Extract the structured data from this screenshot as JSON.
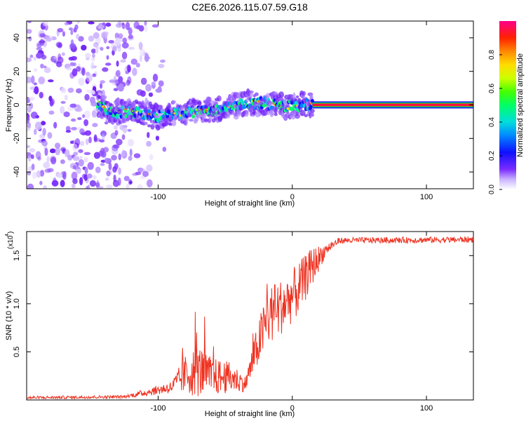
{
  "title": "C2E6.2026.115.07.59.G18",
  "chart_data": [
    {
      "type": "heatmap",
      "xlabel": "Height of straight line (km)",
      "ylabel": "Frequency (Hz)",
      "xlim": [
        -198,
        135
      ],
      "ylim": [
        -50,
        50
      ],
      "xticks": [
        -100,
        0,
        100
      ],
      "yticks": [
        -40,
        -20,
        0,
        20,
        40
      ],
      "colorbar": {
        "label": "Normalized spectral amplitude",
        "range": [
          0,
          1
        ],
        "ticks": [
          0.0,
          0.2,
          0.4,
          0.6,
          0.8
        ],
        "tick_labels": [
          "0.0",
          "0.2",
          "0.4",
          "0.6",
          "0.8"
        ]
      },
      "ridge": {
        "description_points": [
          {
            "x": -140,
            "y": -5
          },
          {
            "x": -120,
            "y": -4
          },
          {
            "x": -100,
            "y": -7
          },
          {
            "x": -80,
            "y": -4
          },
          {
            "x": -65,
            "y": -4
          },
          {
            "x": -50,
            "y": -2
          },
          {
            "x": -35,
            "y": 1
          },
          {
            "x": -20,
            "y": 1
          },
          {
            "x": -5,
            "y": -1
          },
          {
            "x": 10,
            "y": 0
          },
          {
            "x": 135,
            "y": 0
          }
        ],
        "steady_tone_from_x": 15,
        "steady_tone_freq": 0
      },
      "noise_region_x": [
        -198,
        -120
      ]
    },
    {
      "type": "line",
      "xlabel": "Height of straight line (km)",
      "ylabel": "SNR (10 * v/v)",
      "scale_label": "(x10",
      "scale_exp": "4",
      "xlim": [
        -198,
        135
      ],
      "ylim": [
        0,
        1.75
      ],
      "xticks": [
        -100,
        0,
        100
      ],
      "yticks": [
        0.5,
        1.0,
        1.5
      ],
      "ytick_labels": [
        "0.5",
        "1.0",
        "1.5"
      ],
      "series": [
        {
          "name": "SNR",
          "color": "#ee3322",
          "envelope": [
            {
              "x": -198,
              "base": 0.02,
              "amp": 0.02
            },
            {
              "x": -125,
              "base": 0.03,
              "amp": 0.02
            },
            {
              "x": -90,
              "base": 0.12,
              "amp": 0.08
            },
            {
              "x": -80,
              "base": 0.22,
              "amp": 0.25
            },
            {
              "x": -70,
              "base": 0.25,
              "amp": 0.35
            },
            {
              "x": -60,
              "base": 0.2,
              "amp": 0.25
            },
            {
              "x": -45,
              "base": 0.2,
              "amp": 0.2
            },
            {
              "x": -35,
              "base": 0.15,
              "amp": 0.1
            },
            {
              "x": -25,
              "base": 0.55,
              "amp": 0.3
            },
            {
              "x": -18,
              "base": 0.8,
              "amp": 0.4
            },
            {
              "x": -5,
              "base": 0.95,
              "amp": 0.35
            },
            {
              "x": 5,
              "base": 1.1,
              "amp": 0.35
            },
            {
              "x": 15,
              "base": 1.35,
              "amp": 0.25
            },
            {
              "x": 25,
              "base": 1.55,
              "amp": 0.08
            },
            {
              "x": 35,
              "base": 1.65,
              "amp": 0.04
            },
            {
              "x": 135,
              "base": 1.66,
              "amp": 0.04
            }
          ]
        }
      ]
    }
  ]
}
